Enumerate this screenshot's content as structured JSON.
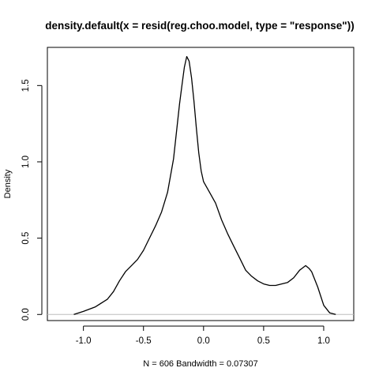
{
  "chart_data": {
    "type": "line",
    "title": "density.default(x = resid(reg.choo.model, type = \"response\"))",
    "xlabel": "N = 606   Bandwidth = 0.07307",
    "ylabel": "Density",
    "xlim": [
      -1.3,
      1.25
    ],
    "ylim": [
      -0.04,
      1.75
    ],
    "x_ticks": [
      -1.0,
      -0.5,
      0.0,
      0.5,
      1.0
    ],
    "x_tick_labels": [
      "-1.0",
      "-0.5",
      "0.0",
      "0.5",
      "1.0"
    ],
    "y_ticks": [
      0.0,
      0.5,
      1.0,
      1.5
    ],
    "y_tick_labels": [
      "0.0",
      "0.5",
      "1.0",
      "1.5"
    ],
    "baseline": 0,
    "line_color": "#000000",
    "baseline_color": "#bebebe",
    "grid": false,
    "series": [
      {
        "x": [
          -1.08,
          -1.0,
          -0.9,
          -0.8,
          -0.75,
          -0.7,
          -0.65,
          -0.6,
          -0.55,
          -0.5,
          -0.45,
          -0.4,
          -0.35,
          -0.3,
          -0.25,
          -0.2,
          -0.18,
          -0.16,
          -0.14,
          -0.12,
          -0.1,
          -0.08,
          -0.06,
          -0.04,
          -0.02,
          0.0,
          0.05,
          0.1,
          0.15,
          0.2,
          0.25,
          0.3,
          0.35,
          0.4,
          0.45,
          0.5,
          0.55,
          0.6,
          0.65,
          0.7,
          0.75,
          0.8,
          0.85,
          0.88,
          0.9,
          0.95,
          1.0,
          1.05,
          1.1
        ],
        "y": [
          0.0,
          0.02,
          0.05,
          0.1,
          0.15,
          0.22,
          0.28,
          0.32,
          0.36,
          0.42,
          0.5,
          0.58,
          0.67,
          0.8,
          1.02,
          1.38,
          1.5,
          1.62,
          1.69,
          1.66,
          1.55,
          1.4,
          1.22,
          1.06,
          0.94,
          0.87,
          0.8,
          0.73,
          0.62,
          0.53,
          0.45,
          0.37,
          0.29,
          0.25,
          0.22,
          0.2,
          0.19,
          0.19,
          0.2,
          0.21,
          0.24,
          0.29,
          0.32,
          0.3,
          0.28,
          0.18,
          0.06,
          0.01,
          0.0
        ]
      }
    ]
  }
}
